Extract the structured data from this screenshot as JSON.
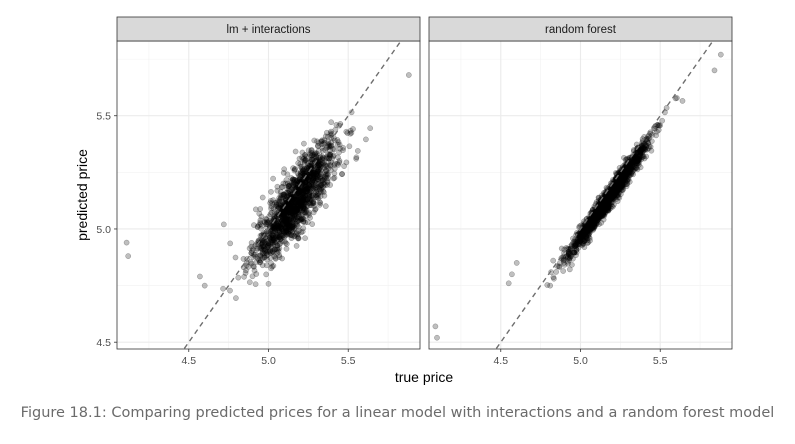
{
  "chart_data": {
    "type": "scatter",
    "facet_layout": "1 row x 2 columns, shared y axis",
    "x_label": "true price",
    "y_label": "predicted price",
    "xlim": [
      4.05,
      5.95
    ],
    "ylim": [
      4.47,
      5.83
    ],
    "x_ticks": [
      4.5,
      5.0,
      5.5
    ],
    "x_tick_labels": [
      "4.5",
      "5.0",
      "5.5"
    ],
    "y_ticks": [
      4.5,
      5.0,
      5.5
    ],
    "y_tick_labels": [
      "4.5",
      "5.0",
      "5.5"
    ],
    "grid": true,
    "point_color": "#000000",
    "point_opacity": 0.25,
    "reference_line": {
      "style": "dashed",
      "slope": 1,
      "intercept": 0,
      "color": "#6e6e6e"
    },
    "panels": [
      {
        "title": "lm + interactions",
        "approx_points": 1400,
        "points_summary": "dense elliptical cloud along y=x, wide spread",
        "outliers": [
          [
            4.11,
            4.94
          ],
          [
            4.12,
            4.88
          ],
          [
            4.57,
            4.79
          ],
          [
            4.6,
            4.75
          ],
          [
            5.55,
            5.31
          ],
          [
            5.88,
            5.68
          ],
          [
            4.72,
            5.02
          ]
        ],
        "center": [
          5.17,
          5.12
        ],
        "spread_resid": 0.07
      },
      {
        "title": "random forest",
        "approx_points": 1400,
        "points_summary": "tight band close to y=x",
        "outliers": [
          [
            4.09,
            4.57
          ],
          [
            4.1,
            4.52
          ],
          [
            4.6,
            4.85
          ],
          [
            4.57,
            4.8
          ],
          [
            4.55,
            4.76
          ],
          [
            5.88,
            5.77
          ],
          [
            5.84,
            5.7
          ]
        ],
        "center": [
          5.17,
          5.13
        ],
        "spread_resid": 0.025
      }
    ]
  },
  "caption": "Figure 18.1: Comparing predicted prices for a linear model with interactions and a random forest model"
}
